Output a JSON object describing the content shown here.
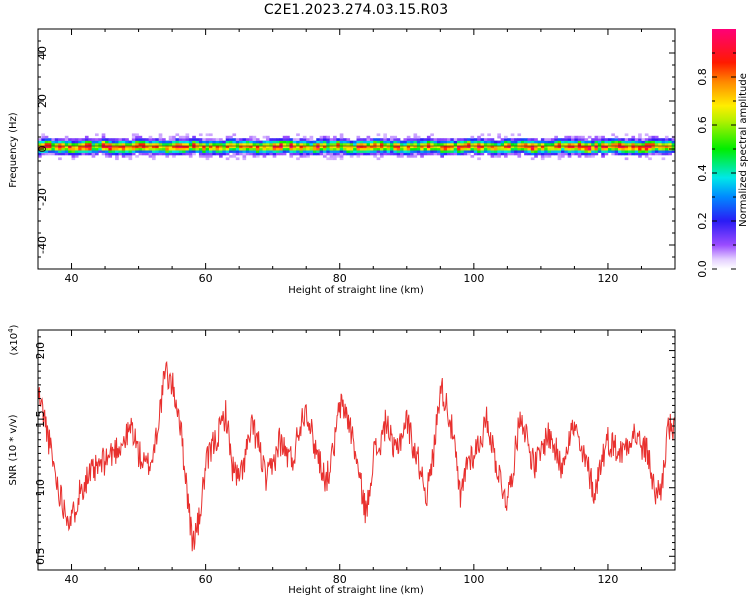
{
  "title": "C2E1.2023.274.03.15.R03",
  "chart_data": [
    {
      "type": "heatmap",
      "xlabel": "Height of straight line (km)",
      "ylabel": "Frequency (Hz)",
      "xlim": [
        35,
        130
      ],
      "ylim": [
        -50,
        50
      ],
      "xticks": [
        40,
        60,
        80,
        100,
        120
      ],
      "yticks": [
        -40,
        -20,
        0,
        20,
        40
      ],
      "band": {
        "center_hz": 1,
        "half_width_hz": 5
      },
      "colorbar": {
        "label": "Normalized spectral amplitude",
        "range": [
          0,
          1
        ],
        "ticks": [
          "0.0",
          "0.2",
          "0.4",
          "0.6",
          "0.8"
        ],
        "colormap": "rainbow (white-violet-blue-cyan-green-yellow-red-magenta)"
      }
    },
    {
      "type": "line",
      "xlabel": "Height of straight line (km)",
      "ylabel": "SNR (10 * v/v)",
      "scale_label": "(x10",
      "scale_exp": "4",
      "scale_close": ")",
      "xlim": [
        35,
        130
      ],
      "ylim": [
        0.4,
        2.15
      ],
      "xticks": [
        40,
        60,
        80,
        100,
        120
      ],
      "yticks": [
        "0.5",
        "1.0",
        "1.5",
        "2.0"
      ],
      "line_color": "#e8302e",
      "x": [
        35,
        36,
        37,
        38,
        39,
        40,
        41,
        42,
        43,
        44,
        45,
        46,
        47,
        48,
        49,
        50,
        51,
        52,
        53,
        54,
        55,
        56,
        57,
        58,
        59,
        60,
        61,
        62,
        63,
        64,
        65,
        66,
        67,
        68,
        69,
        70,
        71,
        72,
        73,
        74,
        75,
        76,
        77,
        78,
        79,
        80,
        81,
        82,
        83,
        84,
        85,
        86,
        87,
        88,
        89,
        90,
        91,
        92,
        93,
        94,
        95,
        96,
        97,
        98,
        99,
        100,
        101,
        102,
        103,
        104,
        105,
        106,
        107,
        108,
        109,
        110,
        111,
        112,
        113,
        114,
        115,
        116,
        117,
        118,
        119,
        120,
        121,
        122,
        123,
        124,
        125,
        126,
        127,
        128,
        129,
        130
      ],
      "y": [
        1.7,
        1.5,
        1.25,
        1.0,
        0.85,
        0.75,
        0.95,
        1.05,
        1.1,
        1.15,
        1.2,
        1.25,
        1.3,
        1.35,
        1.45,
        1.25,
        1.15,
        1.2,
        1.5,
        1.85,
        1.75,
        1.55,
        1.1,
        0.6,
        0.75,
        1.15,
        1.3,
        1.4,
        1.55,
        1.15,
        1.05,
        1.25,
        1.45,
        1.3,
        1.05,
        1.15,
        1.35,
        1.25,
        1.2,
        1.45,
        1.6,
        1.35,
        1.2,
        1.05,
        1.25,
        1.6,
        1.55,
        1.35,
        1.05,
        0.8,
        1.25,
        1.3,
        1.5,
        1.25,
        1.35,
        1.5,
        1.3,
        1.15,
        0.95,
        1.25,
        1.75,
        1.6,
        1.35,
        0.9,
        1.2,
        1.25,
        1.35,
        1.5,
        1.25,
        1.05,
        0.9,
        1.2,
        1.55,
        1.35,
        1.15,
        1.25,
        1.4,
        1.3,
        1.15,
        1.35,
        1.45,
        1.25,
        1.15,
        0.95,
        1.2,
        1.35,
        1.3,
        1.25,
        1.35,
        1.4,
        1.3,
        1.25,
        0.95,
        1.0,
        1.45,
        1.4
      ]
    }
  ]
}
